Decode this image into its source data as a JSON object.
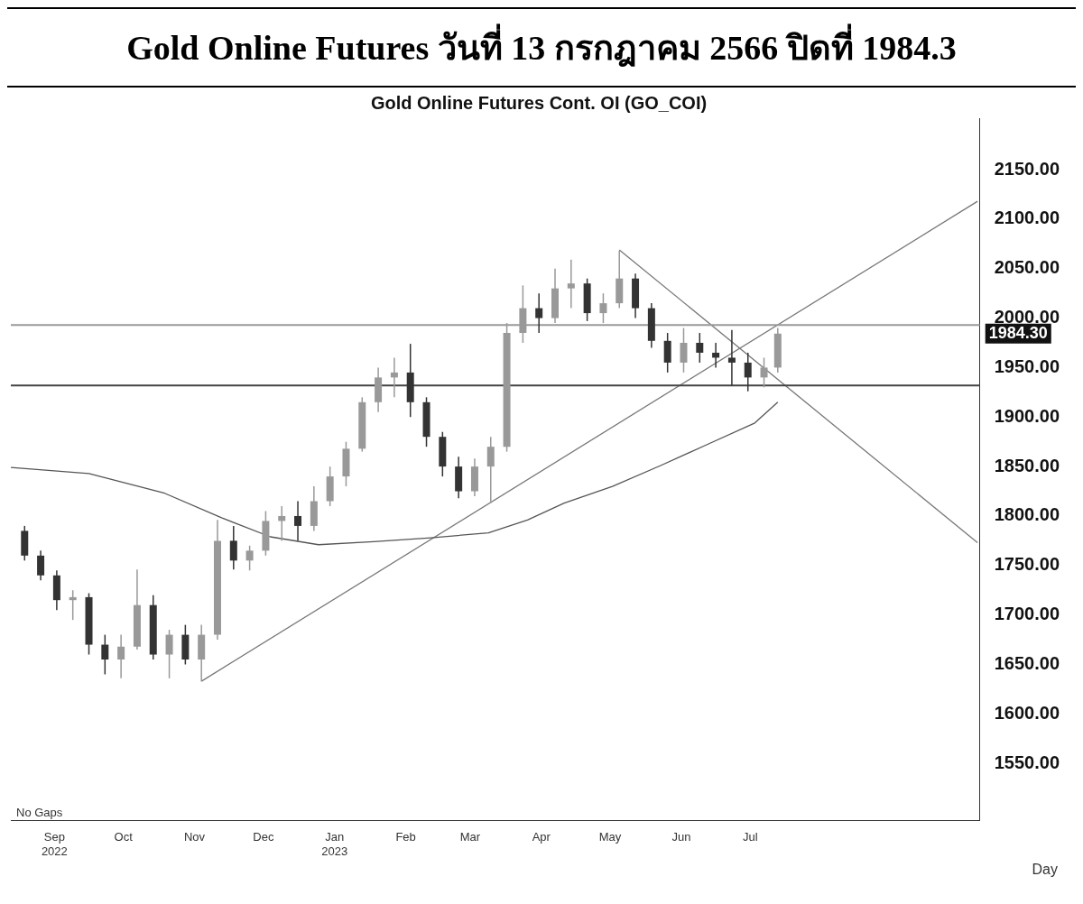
{
  "chart_data": {
    "type": "candlestick",
    "title": "Gold Online Futures วันที่ 13 กรกฎาคม 2566 ปิดที่ 1984.3",
    "subtitle": "Gold Online Futures Cont. OI (GO_COI)",
    "colors": [
      "#333333",
      "#333333",
      "#333333",
      "#999999",
      "#333333",
      "#333333",
      "#999999",
      "#999999",
      "#333333",
      "#999999",
      "#333333",
      "#999999",
      "#999999",
      "#333333",
      "#999999",
      "#999999",
      "#999999",
      "#333333",
      "#999999",
      "#999999",
      "#999999",
      "#999999",
      "#999999",
      "#999999",
      "#333333",
      "#333333",
      "#333333",
      "#333333",
      "#999999",
      "#999999",
      "#999999",
      "#999999",
      "#333333",
      "#999999",
      "#999999",
      "#333333",
      "#999999",
      "#999999",
      "#333333",
      "#333333",
      "#333333",
      "#999999",
      "#333333",
      "#333333",
      "#333333",
      "#333333",
      "#999999",
      "#999999"
    ],
    "x": [
      "2022-08-19",
      "2022-08-26",
      "2022-09-02",
      "2022-09-09",
      "2022-09-16",
      "2022-09-23",
      "2022-09-30",
      "2022-10-07",
      "2022-10-14",
      "2022-10-21",
      "2022-10-28",
      "2022-11-04",
      "2022-11-11",
      "2022-11-18",
      "2022-11-25",
      "2022-12-02",
      "2022-12-09",
      "2022-12-16",
      "2022-12-23",
      "2022-12-30",
      "2023-01-06",
      "2023-01-13",
      "2023-01-20",
      "2023-01-27",
      "2023-02-03",
      "2023-02-10",
      "2023-02-17",
      "2023-02-24",
      "2023-03-03",
      "2023-03-10",
      "2023-03-17",
      "2023-03-24",
      "2023-03-31",
      "2023-04-07",
      "2023-04-14",
      "2023-04-21",
      "2023-04-28",
      "2023-05-05",
      "2023-05-12",
      "2023-05-19",
      "2023-05-26",
      "2023-06-02",
      "2023-06-09",
      "2023-06-16",
      "2023-06-23",
      "2023-06-30",
      "2023-07-07",
      "2023-07-13"
    ],
    "ohlc": [
      [
        1785,
        1790,
        1755,
        1760
      ],
      [
        1760,
        1765,
        1735,
        1740
      ],
      [
        1740,
        1745,
        1705,
        1715
      ],
      [
        1715,
        1725,
        1695,
        1718
      ],
      [
        1718,
        1722,
        1660,
        1670
      ],
      [
        1670,
        1680,
        1640,
        1655
      ],
      [
        1655,
        1680,
        1636,
        1668
      ],
      [
        1668,
        1746,
        1665,
        1710
      ],
      [
        1710,
        1720,
        1655,
        1660
      ],
      [
        1660,
        1685,
        1636,
        1680
      ],
      [
        1680,
        1690,
        1650,
        1655
      ],
      [
        1655,
        1690,
        1633,
        1680
      ],
      [
        1680,
        1796,
        1675,
        1775
      ],
      [
        1775,
        1790,
        1746,
        1755
      ],
      [
        1755,
        1770,
        1745,
        1765
      ],
      [
        1765,
        1805,
        1760,
        1795
      ],
      [
        1795,
        1810,
        1775,
        1800
      ],
      [
        1800,
        1815,
        1775,
        1790
      ],
      [
        1790,
        1830,
        1785,
        1815
      ],
      [
        1815,
        1850,
        1810,
        1840
      ],
      [
        1840,
        1875,
        1830,
        1868
      ],
      [
        1868,
        1920,
        1865,
        1915
      ],
      [
        1915,
        1950,
        1905,
        1940
      ],
      [
        1940,
        1960,
        1920,
        1945
      ],
      [
        1945,
        1974,
        1900,
        1915
      ],
      [
        1915,
        1920,
        1870,
        1880
      ],
      [
        1880,
        1885,
        1840,
        1850
      ],
      [
        1850,
        1860,
        1818,
        1825
      ],
      [
        1825,
        1858,
        1820,
        1850
      ],
      [
        1850,
        1880,
        1813,
        1870
      ],
      [
        1870,
        1995,
        1865,
        1985
      ],
      [
        1985,
        2033,
        1975,
        2010
      ],
      [
        2010,
        2025,
        1985,
        2000
      ],
      [
        2000,
        2050,
        1995,
        2030
      ],
      [
        2030,
        2059,
        2010,
        2035
      ],
      [
        2035,
        2040,
        1997,
        2005
      ],
      [
        2005,
        2025,
        1995,
        2015
      ],
      [
        2015,
        2068,
        2010,
        2040
      ],
      [
        2040,
        2045,
        2000,
        2010
      ],
      [
        2010,
        2015,
        1970,
        1977
      ],
      [
        1977,
        1985,
        1945,
        1955
      ],
      [
        1955,
        1990,
        1945,
        1975
      ],
      [
        1975,
        1985,
        1955,
        1965
      ],
      [
        1965,
        1975,
        1950,
        1960
      ],
      [
        1960,
        1988,
        1932,
        1955
      ],
      [
        1955,
        1965,
        1926,
        1940
      ],
      [
        1940,
        1960,
        1930,
        1950
      ],
      [
        1950,
        1990,
        1945,
        1984.3
      ]
    ],
    "series": [
      {
        "type": "line",
        "color": "#555555",
        "x": [
          "2022-08-13",
          "2022-09-16",
          "2022-10-19",
          "2022-11-13",
          "2022-12-04",
          "2022-12-25",
          "2023-01-18",
          "2023-02-12",
          "2023-03-09",
          "2023-03-26",
          "2023-04-11",
          "2023-05-02",
          "2023-05-23",
          "2023-06-12",
          "2023-07-03",
          "2023-07-13"
        ],
        "values": [
          1849,
          1843,
          1823,
          1798,
          1779,
          1771,
          1774,
          1778,
          1783,
          1796,
          1813,
          1830,
          1851,
          1872,
          1894,
          1915
        ]
      },
      {
        "type": "line",
        "color": "#777777",
        "x": [
          "2022-11-04",
          "2023-10-08"
        ],
        "values": [
          1633,
          2118
        ]
      },
      {
        "type": "line",
        "color": "#777777",
        "x": [
          "2023-05-05",
          "2023-10-08"
        ],
        "values": [
          2069,
          1773
        ]
      }
    ],
    "xlim": [
      "2022-08-13",
      "2023-10-09"
    ],
    "xticks": [
      {
        "value": "2022-09-01",
        "label": "Sep\n2022"
      },
      {
        "value": "2022-10-01",
        "label": "Oct"
      },
      {
        "value": "2022-11-01",
        "label": "Nov"
      },
      {
        "value": "2022-12-01",
        "label": "Dec"
      },
      {
        "value": "2023-01-01",
        "label": "Jan\n2023"
      },
      {
        "value": "2023-02-01",
        "label": "Feb"
      },
      {
        "value": "2023-03-01",
        "label": "Mar"
      },
      {
        "value": "2023-04-01",
        "label": "Apr"
      },
      {
        "value": "2023-05-01",
        "label": "May"
      },
      {
        "value": "2023-06-01",
        "label": "Jun"
      },
      {
        "value": "2023-07-01",
        "label": "Jul"
      }
    ],
    "ylim": [
      1492,
      2202
    ],
    "yticks": [
      {
        "value": 1550,
        "label": "1550.00"
      },
      {
        "value": 1600,
        "label": "1600.00"
      },
      {
        "value": 1650,
        "label": "1650.00"
      },
      {
        "value": 1700,
        "label": "1700.00"
      },
      {
        "value": 1750,
        "label": "1750.00"
      },
      {
        "value": 1800,
        "label": "1800.00"
      },
      {
        "value": 1850,
        "label": "1850.00"
      },
      {
        "value": 1900,
        "label": "1900.00"
      },
      {
        "value": 1950,
        "label": "1950.00"
      },
      {
        "value": 2000,
        "label": "2000.00"
      },
      {
        "value": 2050,
        "label": "2050.00"
      },
      {
        "value": 2100,
        "label": "2100.00"
      },
      {
        "value": 2150,
        "label": "2150.00"
      }
    ],
    "ref_lines": [
      {
        "axis": "y",
        "value": 1993,
        "color": "#999999"
      },
      {
        "axis": "y",
        "value": 1932,
        "color": "#444444"
      }
    ],
    "annotations": [
      "No Gaps",
      "1984.30",
      "Day"
    ],
    "grid": false,
    "legend": false
  }
}
